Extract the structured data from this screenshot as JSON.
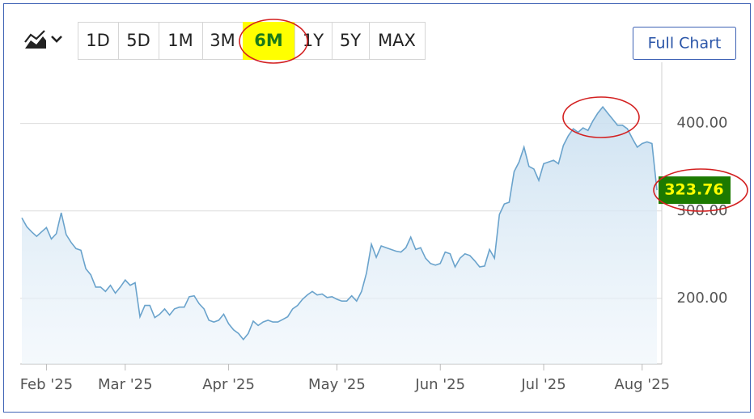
{
  "toolbar": {
    "ranges": [
      "1D",
      "5D",
      "1M",
      "3M",
      "6M",
      "1Y",
      "5Y",
      "MAX"
    ],
    "active": "6M",
    "full_chart": "Full Chart"
  },
  "chart_data": {
    "type": "line",
    "color": "#6aa3cc",
    "values": [
      292,
      282,
      276,
      271,
      276,
      281,
      268,
      274,
      298,
      273,
      264,
      257,
      255,
      234,
      227,
      213,
      213,
      208,
      215,
      206,
      213,
      221,
      215,
      218,
      179,
      192,
      192,
      178,
      182,
      188,
      181,
      188,
      190,
      190,
      202,
      203,
      194,
      188,
      175,
      173,
      175,
      182,
      171,
      164,
      160,
      153,
      160,
      174,
      169,
      173,
      175,
      173,
      173,
      176,
      179,
      188,
      192,
      199,
      204,
      208,
      204,
      205,
      201,
      202,
      199,
      197,
      197,
      203,
      197,
      208,
      229,
      262,
      247,
      260,
      258,
      256,
      254,
      253,
      258,
      270,
      256,
      258,
      246,
      240,
      238,
      240,
      253,
      251,
      236,
      246,
      251,
      249,
      243,
      236,
      237,
      256,
      246,
      296,
      308,
      310,
      345,
      356,
      373,
      351,
      348,
      335,
      354,
      356,
      358,
      354,
      375,
      386,
      394,
      390,
      395,
      392,
      403,
      412,
      419,
      412,
      405,
      398,
      398,
      394,
      383,
      373,
      377,
      379,
      377,
      323.76
    ],
    "xlim": [
      0,
      129
    ],
    "xticks": [
      {
        "value": 5,
        "label": "Feb '25"
      },
      {
        "value": 21,
        "label": "Mar '25"
      },
      {
        "value": 42,
        "label": "Apr '25"
      },
      {
        "value": 64,
        "label": "May '25"
      },
      {
        "value": 85,
        "label": "Jun '25"
      },
      {
        "value": 106,
        "label": "Jul '25"
      },
      {
        "value": 126,
        "label": "Aug '25"
      }
    ],
    "ylim": [
      125,
      470
    ],
    "yticks": [
      {
        "value": 200,
        "label": "200.00"
      },
      {
        "value": 300,
        "label": "300.00"
      },
      {
        "value": 400,
        "label": "400.00"
      }
    ],
    "grid": true
  }
}
